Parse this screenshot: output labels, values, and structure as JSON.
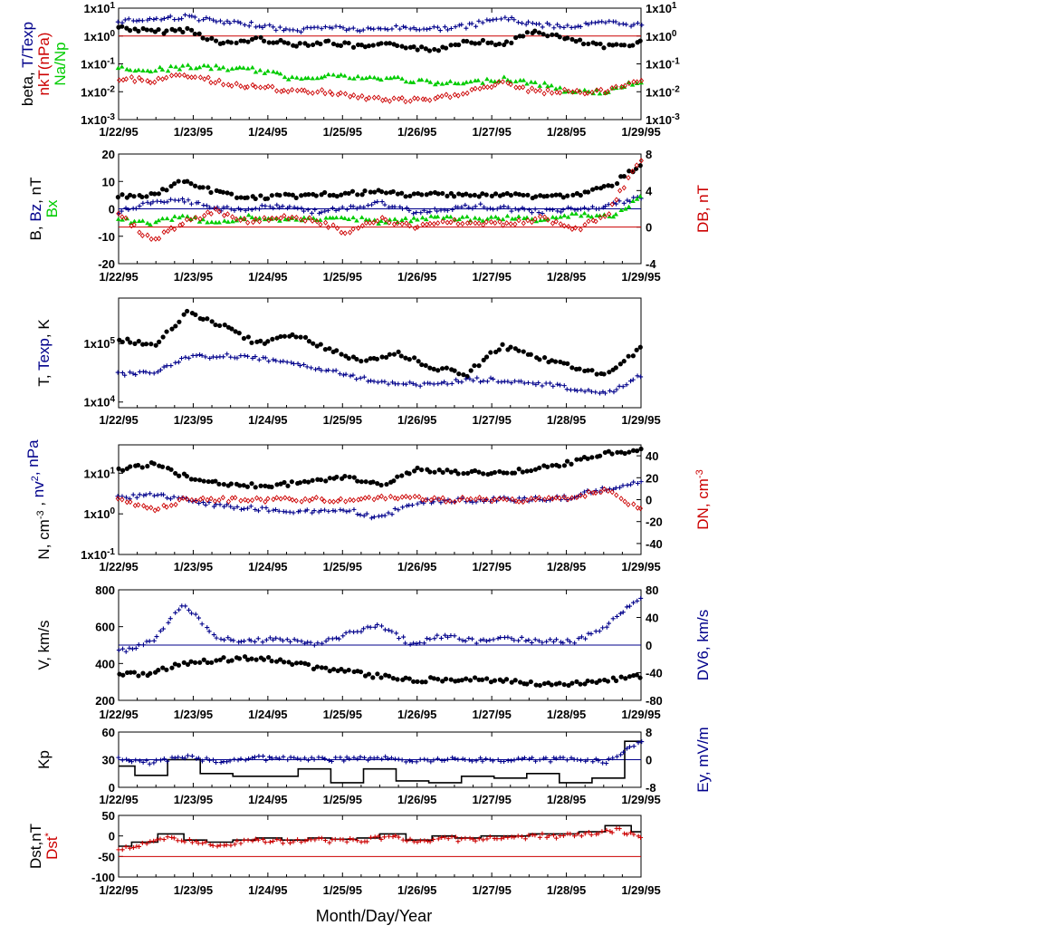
{
  "x_axis": {
    "date_labels": [
      "1/22/95",
      "1/23/95",
      "1/24/95",
      "1/25/95",
      "1/26/95",
      "1/27/95",
      "1/28/95",
      "1/29/95"
    ],
    "title": "Month/Day/Year"
  },
  "colors": {
    "black": "#000000",
    "red": "#cc0000",
    "blue": "#00008b",
    "green": "#00cc00"
  },
  "chart_data": [
    {
      "type": "scatter",
      "ylabel_left_lines": [
        [
          {
            "text": "beta, ",
            "color": "black"
          },
          {
            "text": "T/Texp",
            "color": "blue"
          }
        ],
        [
          {
            "text": "nkT(nPa)",
            "color": "red"
          }
        ],
        [
          {
            "text": "Na/Np",
            "color": "green"
          }
        ]
      ],
      "y_scale": "log",
      "ylim": [
        0.001,
        10
      ],
      "yticks_left": [
        "1x10-3",
        "1x10-2",
        "1x10-1",
        "1x100",
        "1x101"
      ],
      "yticks_right": [
        "1x10-3",
        "1x10-2",
        "1x10-1",
        "1x100",
        "1x101"
      ],
      "reference_line": {
        "y": 1,
        "color": "red"
      },
      "series": [
        {
          "color": "black",
          "marker": "dot",
          "values": [
            2.1,
            1.4,
            1.7,
            0.5,
            0.8,
            0.5,
            0.6,
            0.4,
            0.5,
            0.3,
            0.7,
            0.5,
            1.5,
            0.7,
            0.4,
            0.6
          ]
        },
        {
          "color": "blue",
          "marker": "plus",
          "values": [
            3.5,
            4.0,
            5.0,
            3.0,
            2.5,
            1.5,
            2.2,
            1.6,
            2.0,
            1.8,
            2.2,
            4.5,
            2.5,
            2.2,
            3.0,
            2.5
          ]
        },
        {
          "color": "green",
          "marker": "triangle",
          "values": [
            0.07,
            0.06,
            0.08,
            0.07,
            0.06,
            0.03,
            0.04,
            0.03,
            0.03,
            0.02,
            0.02,
            0.03,
            0.02,
            0.01,
            0.01,
            0.025
          ]
        },
        {
          "color": "red",
          "marker": "diamond",
          "values": [
            0.03,
            0.025,
            0.04,
            0.02,
            0.015,
            0.01,
            0.01,
            0.006,
            0.005,
            0.005,
            0.01,
            0.02,
            0.01,
            0.01,
            0.01,
            0.03
          ]
        }
      ]
    },
    {
      "type": "scatter",
      "ylabel_left_lines": [
        [
          {
            "text": "B, ",
            "color": "black"
          },
          {
            "text": "Bz",
            "color": "blue"
          },
          {
            "text": ", nT",
            "color": "black"
          }
        ],
        [
          {
            "text": "Bx",
            "color": "green"
          }
        ]
      ],
      "ylabel_right_lines": [
        [
          {
            "text": "DB, nT",
            "color": "red"
          }
        ]
      ],
      "ylim": [
        -20,
        20
      ],
      "ylim_right": [
        -4,
        8
      ],
      "yticks_left": [
        "20",
        "10",
        "0",
        "-10",
        "-20"
      ],
      "yticks_right": [
        "8",
        "4",
        "0",
        "-4"
      ],
      "reference_line": {
        "y": 0,
        "color": "blue"
      },
      "reference_line_right": {
        "y": 0,
        "color": "red"
      },
      "series": [
        {
          "color": "black",
          "marker": "dot",
          "values": [
            4.5,
            5,
            10,
            6,
            4,
            4.5,
            5,
            5.5,
            6,
            5,
            5.5,
            5,
            5,
            4.5,
            5,
            8,
            16
          ]
        },
        {
          "color": "blue",
          "marker": "plus",
          "values": [
            -1,
            2,
            3,
            0,
            0,
            1,
            -1,
            0,
            2,
            -1,
            0,
            1,
            0,
            -1,
            0,
            1,
            4
          ]
        },
        {
          "color": "green",
          "marker": "triangle",
          "values": [
            -4,
            -5,
            -3,
            -5,
            -3,
            -4,
            -4,
            -3,
            -5,
            -4,
            -3,
            -4,
            -3,
            -4,
            -2,
            -3,
            4
          ]
        },
        {
          "color": "red",
          "marker": "diamond",
          "axis": "right",
          "values": [
            1.5,
            -1.5,
            0.5,
            1.8,
            0.5,
            1.2,
            0.8,
            -0.6,
            1,
            0,
            0.6,
            0.5,
            0.4,
            1,
            -0.3,
            1.5,
            7.5
          ]
        }
      ]
    },
    {
      "type": "scatter",
      "ylabel_left_lines": [
        [
          {
            "text": "T, ",
            "color": "black"
          },
          {
            "text": "Texp",
            "color": "blue"
          },
          {
            "text": ", K",
            "color": "black"
          }
        ]
      ],
      "y_scale": "log",
      "ylim": [
        8000,
        600000
      ],
      "yticks_left": [
        "1x104",
        "1x105"
      ],
      "series": [
        {
          "color": "black",
          "marker": "dot",
          "values": [
            120000,
            90000,
            350000,
            200000,
            100000,
            150000,
            80000,
            50000,
            70000,
            40000,
            30000,
            90000,
            60000,
            40000,
            30000,
            80000
          ]
        },
        {
          "color": "blue",
          "marker": "plus",
          "values": [
            30000,
            33000,
            60000,
            62000,
            55000,
            45000,
            35000,
            25000,
            21000,
            20000,
            24000,
            24000,
            21000,
            17000,
            14000,
            28000
          ]
        }
      ]
    },
    {
      "type": "scatter",
      "ylabel_left_lines": [
        [
          {
            "text": "N, cm",
            "color": "black"
          },
          {
            "text": "-3",
            "color": "black",
            "sup": true
          },
          {
            "text": " , ",
            "color": "black"
          },
          {
            "text": "nv",
            "color": "blue"
          },
          {
            "text": "2",
            "color": "blue",
            "sup": true
          },
          {
            "text": ", nPa",
            "color": "blue"
          }
        ]
      ],
      "ylabel_right_lines": [
        [
          {
            "text": "DN, cm",
            "color": "red"
          },
          {
            "text": "-3",
            "color": "red",
            "sup": true
          }
        ]
      ],
      "y_scale": "log",
      "ylim": [
        0.1,
        50
      ],
      "ylim_right": [
        -50,
        50
      ],
      "yticks_left": [
        "1x10-1",
        "1x100",
        "1x101"
      ],
      "yticks_right": [
        "40",
        "20",
        "0",
        "-20",
        "-40"
      ],
      "series": [
        {
          "color": "black",
          "marker": "dot",
          "values": [
            12,
            17,
            7,
            5,
            5,
            6,
            8,
            5,
            12,
            11,
            10,
            12,
            17,
            30,
            38
          ]
        },
        {
          "color": "blue",
          "marker": "plus",
          "values": [
            2.5,
            3,
            2.0,
            1.5,
            1.3,
            1.1,
            1.3,
            0.8,
            2.0,
            2.1,
            2.3,
            2.3,
            2.5,
            4,
            6
          ]
        },
        {
          "color": "red",
          "marker": "diamond",
          "axis": "right",
          "values": [
            0,
            -10,
            1,
            0,
            0,
            0,
            0,
            0,
            2,
            0,
            0,
            0,
            0,
            2,
            10,
            -10
          ]
        }
      ]
    },
    {
      "type": "scatter",
      "ylabel_left_lines": [
        [
          {
            "text": "V, km/s",
            "color": "black"
          }
        ]
      ],
      "ylabel_right_lines": [
        [
          {
            "text": "DV6, km/s",
            "color": "blue"
          }
        ]
      ],
      "ylim": [
        200,
        800
      ],
      "ylim_right": [
        -80,
        80
      ],
      "yticks_left": [
        "800",
        "600",
        "400",
        "200"
      ],
      "yticks_right": [
        "80",
        "40",
        "0",
        "-40",
        "-80"
      ],
      "reference_line_right": {
        "y": 0,
        "color": "blue"
      },
      "series": [
        {
          "color": "black",
          "marker": "dot",
          "values": [
            345,
            345,
            400,
            420,
            430,
            415,
            380,
            355,
            330,
            310,
            315,
            315,
            305,
            290,
            290,
            310,
            330
          ]
        },
        {
          "color": "blue",
          "marker": "plus",
          "axis": "right",
          "values": [
            -10,
            5,
            60,
            10,
            5,
            10,
            0,
            15,
            30,
            0,
            15,
            5,
            10,
            5,
            5,
            30,
            70
          ]
        }
      ]
    },
    {
      "type": "line",
      "ylabel_left_lines": [
        [
          {
            "text": "Kp",
            "color": "black"
          }
        ]
      ],
      "ylabel_right_lines": [
        [
          {
            "text": "Ey,  mV/m",
            "color": "blue"
          }
        ]
      ],
      "ylim": [
        0,
        60
      ],
      "ylim_right": [
        -8,
        8
      ],
      "yticks_left": [
        "60",
        "30",
        "0"
      ],
      "yticks_right": [
        "8",
        "0",
        "-8"
      ],
      "reference_line_right": {
        "y": 0,
        "color": "blue"
      },
      "series": [
        {
          "color": "black",
          "marker": "line",
          "values": [
            23,
            13,
            30,
            15,
            12,
            12,
            20,
            5,
            20,
            7,
            5,
            12,
            10,
            15,
            5,
            10,
            50
          ]
        },
        {
          "color": "blue",
          "marker": "plus",
          "axis": "right",
          "values": [
            0,
            -0.8,
            0.8,
            -0.5,
            0.5,
            0.3,
            0.2,
            0.1,
            0.4,
            -0.2,
            0.2,
            0.1,
            0,
            0,
            0.2,
            -0.6,
            5
          ]
        }
      ]
    },
    {
      "type": "line",
      "ylabel_left_lines": [
        [
          {
            "text": "Dst,nT",
            "color": "black"
          }
        ],
        [
          {
            "text": "Dst",
            "color": "red"
          },
          {
            "text": "*",
            "color": "red",
            "sup": true
          }
        ]
      ],
      "ylim": [
        -100,
        50
      ],
      "yticks_left": [
        "50",
        "0",
        "-50",
        "-100"
      ],
      "reference_line": {
        "y": -50,
        "color": "red"
      },
      "series": [
        {
          "color": "black",
          "marker": "line",
          "values": [
            -25,
            -15,
            5,
            -10,
            -15,
            -10,
            -5,
            -10,
            -5,
            -8,
            -5,
            5,
            -10,
            0,
            -5,
            0,
            0,
            5,
            5,
            10,
            25,
            10
          ]
        },
        {
          "color": "red",
          "marker": "plus",
          "values": [
            -30,
            -20,
            -5,
            -15,
            -20,
            -15,
            -10,
            -15,
            -10,
            -12,
            -10,
            0,
            -15,
            -5,
            -10,
            -5,
            -5,
            0,
            0,
            5,
            15,
            0
          ]
        }
      ]
    }
  ]
}
